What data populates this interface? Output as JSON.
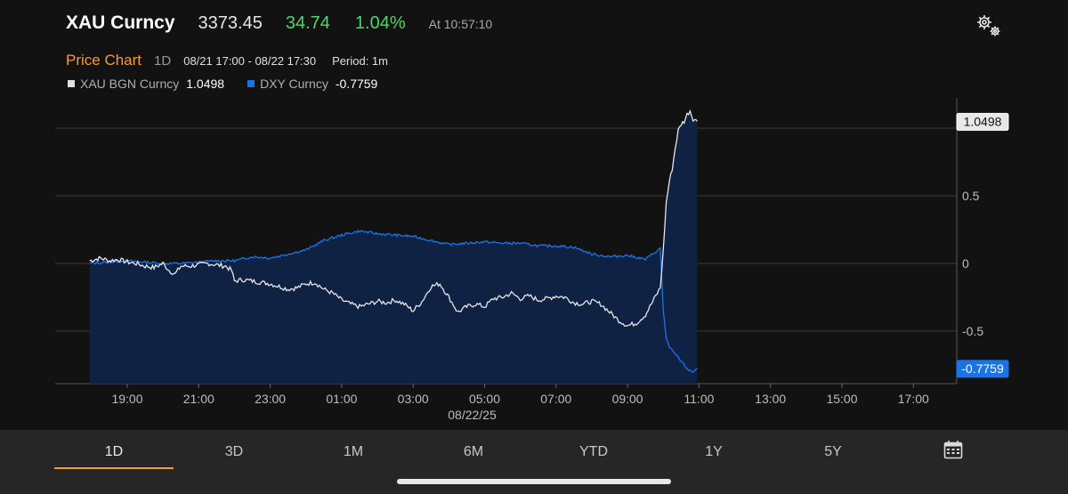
{
  "header": {
    "ticker": "XAU Curncy",
    "price": "3373.45",
    "change": "34.74",
    "change_pct": "1.04%",
    "as_of": "At 10:57:10",
    "settings_icon": "gears-icon"
  },
  "subheader": {
    "title": "Price Chart",
    "range": "1D",
    "dates": "08/21 17:00 - 08/22 17:30",
    "period": "Period: 1m"
  },
  "legend": [
    {
      "name": "XAU BGN Curncy",
      "value": "1.0498",
      "color": "#e0e0e0"
    },
    {
      "name": "DXY Curncy",
      "value": "-0.7759",
      "color": "#1a74e8"
    }
  ],
  "chart_data": {
    "type": "line",
    "x_ticks": [
      "19:00",
      "21:00",
      "23:00",
      "01:00",
      "03:00",
      "05:00",
      "07:00",
      "09:00",
      "11:00",
      "13:00",
      "15:00",
      "17:00"
    ],
    "x_sublabel": "08/22/25",
    "y_ticks": [
      "0.5",
      "0",
      "-0.5"
    ],
    "y_range": [
      -0.87,
      1.15
    ],
    "series": [
      {
        "name": "XAU BGN Curncy",
        "color": "#e6e6e6",
        "last_label": "1.0498",
        "points": [
          [
            "17:57",
            0.02
          ],
          [
            "18:15",
            0.04
          ],
          [
            "18:30",
            0.02
          ],
          [
            "18:45",
            0.03
          ],
          [
            "19:00",
            0.01
          ],
          [
            "19:15",
            0.0
          ],
          [
            "19:30",
            -0.02
          ],
          [
            "19:45",
            -0.03
          ],
          [
            "20:00",
            0.0
          ],
          [
            "20:10",
            -0.05
          ],
          [
            "20:20",
            -0.08
          ],
          [
            "20:30",
            -0.02
          ],
          [
            "20:45",
            -0.02
          ],
          [
            "21:00",
            -0.01
          ],
          [
            "21:15",
            0.0
          ],
          [
            "21:30",
            -0.01
          ],
          [
            "21:45",
            -0.02
          ],
          [
            "21:55",
            -0.05
          ],
          [
            "22:00",
            -0.13
          ],
          [
            "22:15",
            -0.12
          ],
          [
            "22:30",
            -0.13
          ],
          [
            "22:45",
            -0.14
          ],
          [
            "23:00",
            -0.15
          ],
          [
            "23:15",
            -0.17
          ],
          [
            "23:30",
            -0.19
          ],
          [
            "23:45",
            -0.18
          ],
          [
            "00:00",
            -0.15
          ],
          [
            "00:15",
            -0.14
          ],
          [
            "00:30",
            -0.19
          ],
          [
            "00:45",
            -0.22
          ],
          [
            "01:00",
            -0.27
          ],
          [
            "01:15",
            -0.3
          ],
          [
            "01:30",
            -0.32
          ],
          [
            "01:45",
            -0.3
          ],
          [
            "02:00",
            -0.28
          ],
          [
            "02:15",
            -0.29
          ],
          [
            "02:30",
            -0.27
          ],
          [
            "02:45",
            -0.3
          ],
          [
            "03:00",
            -0.35
          ],
          [
            "03:15",
            -0.28
          ],
          [
            "03:30",
            -0.17
          ],
          [
            "03:45",
            -0.15
          ],
          [
            "04:00",
            -0.25
          ],
          [
            "04:15",
            -0.36
          ],
          [
            "04:30",
            -0.32
          ],
          [
            "04:45",
            -0.3
          ],
          [
            "05:00",
            -0.32
          ],
          [
            "05:15",
            -0.26
          ],
          [
            "05:30",
            -0.25
          ],
          [
            "05:45",
            -0.22
          ],
          [
            "06:00",
            -0.26
          ],
          [
            "06:15",
            -0.24
          ],
          [
            "06:30",
            -0.27
          ],
          [
            "06:45",
            -0.26
          ],
          [
            "07:00",
            -0.24
          ],
          [
            "07:15",
            -0.25
          ],
          [
            "07:30",
            -0.29
          ],
          [
            "07:45",
            -0.3
          ],
          [
            "08:00",
            -0.28
          ],
          [
            "08:15",
            -0.3
          ],
          [
            "08:30",
            -0.36
          ],
          [
            "08:45",
            -0.42
          ],
          [
            "09:00",
            -0.46
          ],
          [
            "09:15",
            -0.44
          ],
          [
            "09:30",
            -0.38
          ],
          [
            "09:45",
            -0.26
          ],
          [
            "09:55",
            -0.18
          ],
          [
            "10:00",
            0.1
          ],
          [
            "10:05",
            0.45
          ],
          [
            "10:10",
            0.6
          ],
          [
            "10:15",
            0.7
          ],
          [
            "10:20",
            0.85
          ],
          [
            "10:25",
            0.98
          ],
          [
            "10:30",
            1.03
          ],
          [
            "10:35",
            1.05
          ],
          [
            "10:40",
            1.1
          ],
          [
            "10:45",
            1.13
          ],
          [
            "10:50",
            1.07
          ],
          [
            "10:57",
            1.0498
          ]
        ]
      },
      {
        "name": "DXY Curncy",
        "color": "#1a74e8",
        "last_label": "-0.7759",
        "points": [
          [
            "17:57",
            0.0
          ],
          [
            "18:30",
            0.01
          ],
          [
            "19:00",
            0.02
          ],
          [
            "19:30",
            0.01
          ],
          [
            "20:00",
            0.0
          ],
          [
            "20:30",
            0.0
          ],
          [
            "21:00",
            0.01
          ],
          [
            "21:30",
            0.02
          ],
          [
            "22:00",
            0.02
          ],
          [
            "22:30",
            0.05
          ],
          [
            "23:00",
            0.04
          ],
          [
            "23:30",
            0.07
          ],
          [
            "00:00",
            0.1
          ],
          [
            "00:30",
            0.17
          ],
          [
            "01:00",
            0.21
          ],
          [
            "01:30",
            0.24
          ],
          [
            "02:00",
            0.22
          ],
          [
            "02:30",
            0.21
          ],
          [
            "03:00",
            0.2
          ],
          [
            "03:30",
            0.17
          ],
          [
            "04:00",
            0.14
          ],
          [
            "04:30",
            0.15
          ],
          [
            "05:00",
            0.16
          ],
          [
            "05:30",
            0.15
          ],
          [
            "06:00",
            0.15
          ],
          [
            "06:30",
            0.13
          ],
          [
            "07:00",
            0.13
          ],
          [
            "07:30",
            0.12
          ],
          [
            "08:00",
            0.07
          ],
          [
            "08:30",
            0.05
          ],
          [
            "09:00",
            0.06
          ],
          [
            "09:30",
            0.03
          ],
          [
            "09:45",
            0.08
          ],
          [
            "09:55",
            0.11
          ],
          [
            "10:00",
            -0.35
          ],
          [
            "10:05",
            -0.55
          ],
          [
            "10:10",
            -0.62
          ],
          [
            "10:20",
            -0.67
          ],
          [
            "10:30",
            -0.72
          ],
          [
            "10:40",
            -0.78
          ],
          [
            "10:50",
            -0.8
          ],
          [
            "10:57",
            -0.7759
          ]
        ]
      }
    ]
  },
  "tabs": [
    {
      "label": "1D",
      "active": true
    },
    {
      "label": "3D"
    },
    {
      "label": "1M"
    },
    {
      "label": "6M"
    },
    {
      "label": "YTD"
    },
    {
      "label": "1Y"
    },
    {
      "label": "5Y"
    }
  ],
  "calendar_icon": "calendar-icon"
}
